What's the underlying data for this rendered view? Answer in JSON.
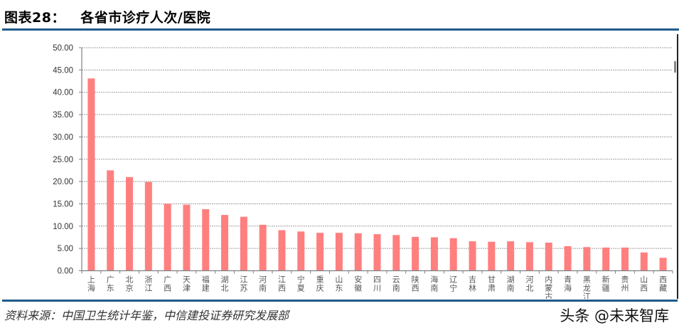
{
  "header": {
    "title": "图表28：   各省市诊疗人次/医院"
  },
  "footer": {
    "source": "资料来源：中国卫生统计年鉴，中信建投证券研究发展部",
    "watermark": "头条 @未来智库"
  },
  "colors": {
    "bar": "#FF7F7F",
    "rule": "#1F5A8C",
    "grid": "#A0A0A0",
    "axis": "#808080",
    "tick_label": "#333333"
  },
  "chart_data": {
    "type": "bar",
    "title": "各省市诊疗人次/医院",
    "xlabel": "",
    "ylabel": "",
    "ylim": [
      0,
      50
    ],
    "yticks": [
      "0.00",
      "5.00",
      "10.00",
      "15.00",
      "20.00",
      "25.00",
      "30.00",
      "35.00",
      "40.00",
      "45.00",
      "50.00"
    ],
    "grid": true,
    "legend": null,
    "categories": [
      "上海",
      "广东",
      "北京",
      "浙江",
      "广西",
      "天津",
      "福建",
      "湖北",
      "江苏",
      "河南",
      "江西",
      "宁夏",
      "重庆",
      "山东",
      "安徽",
      "四川",
      "云南",
      "陕西",
      "海南",
      "辽宁",
      "吉林",
      "甘肃",
      "湖南",
      "河北",
      "内蒙古",
      "青海",
      "黑龙江",
      "新疆",
      "贵州",
      "山西",
      "西藏"
    ],
    "values": [
      43.1,
      22.5,
      21.0,
      19.9,
      15.0,
      14.8,
      13.8,
      12.5,
      12.1,
      10.3,
      9.1,
      8.8,
      8.5,
      8.5,
      8.4,
      8.2,
      8.0,
      7.6,
      7.5,
      7.3,
      6.6,
      6.5,
      6.6,
      6.4,
      6.3,
      5.5,
      5.3,
      5.2,
      5.2,
      4.1,
      2.9
    ]
  }
}
